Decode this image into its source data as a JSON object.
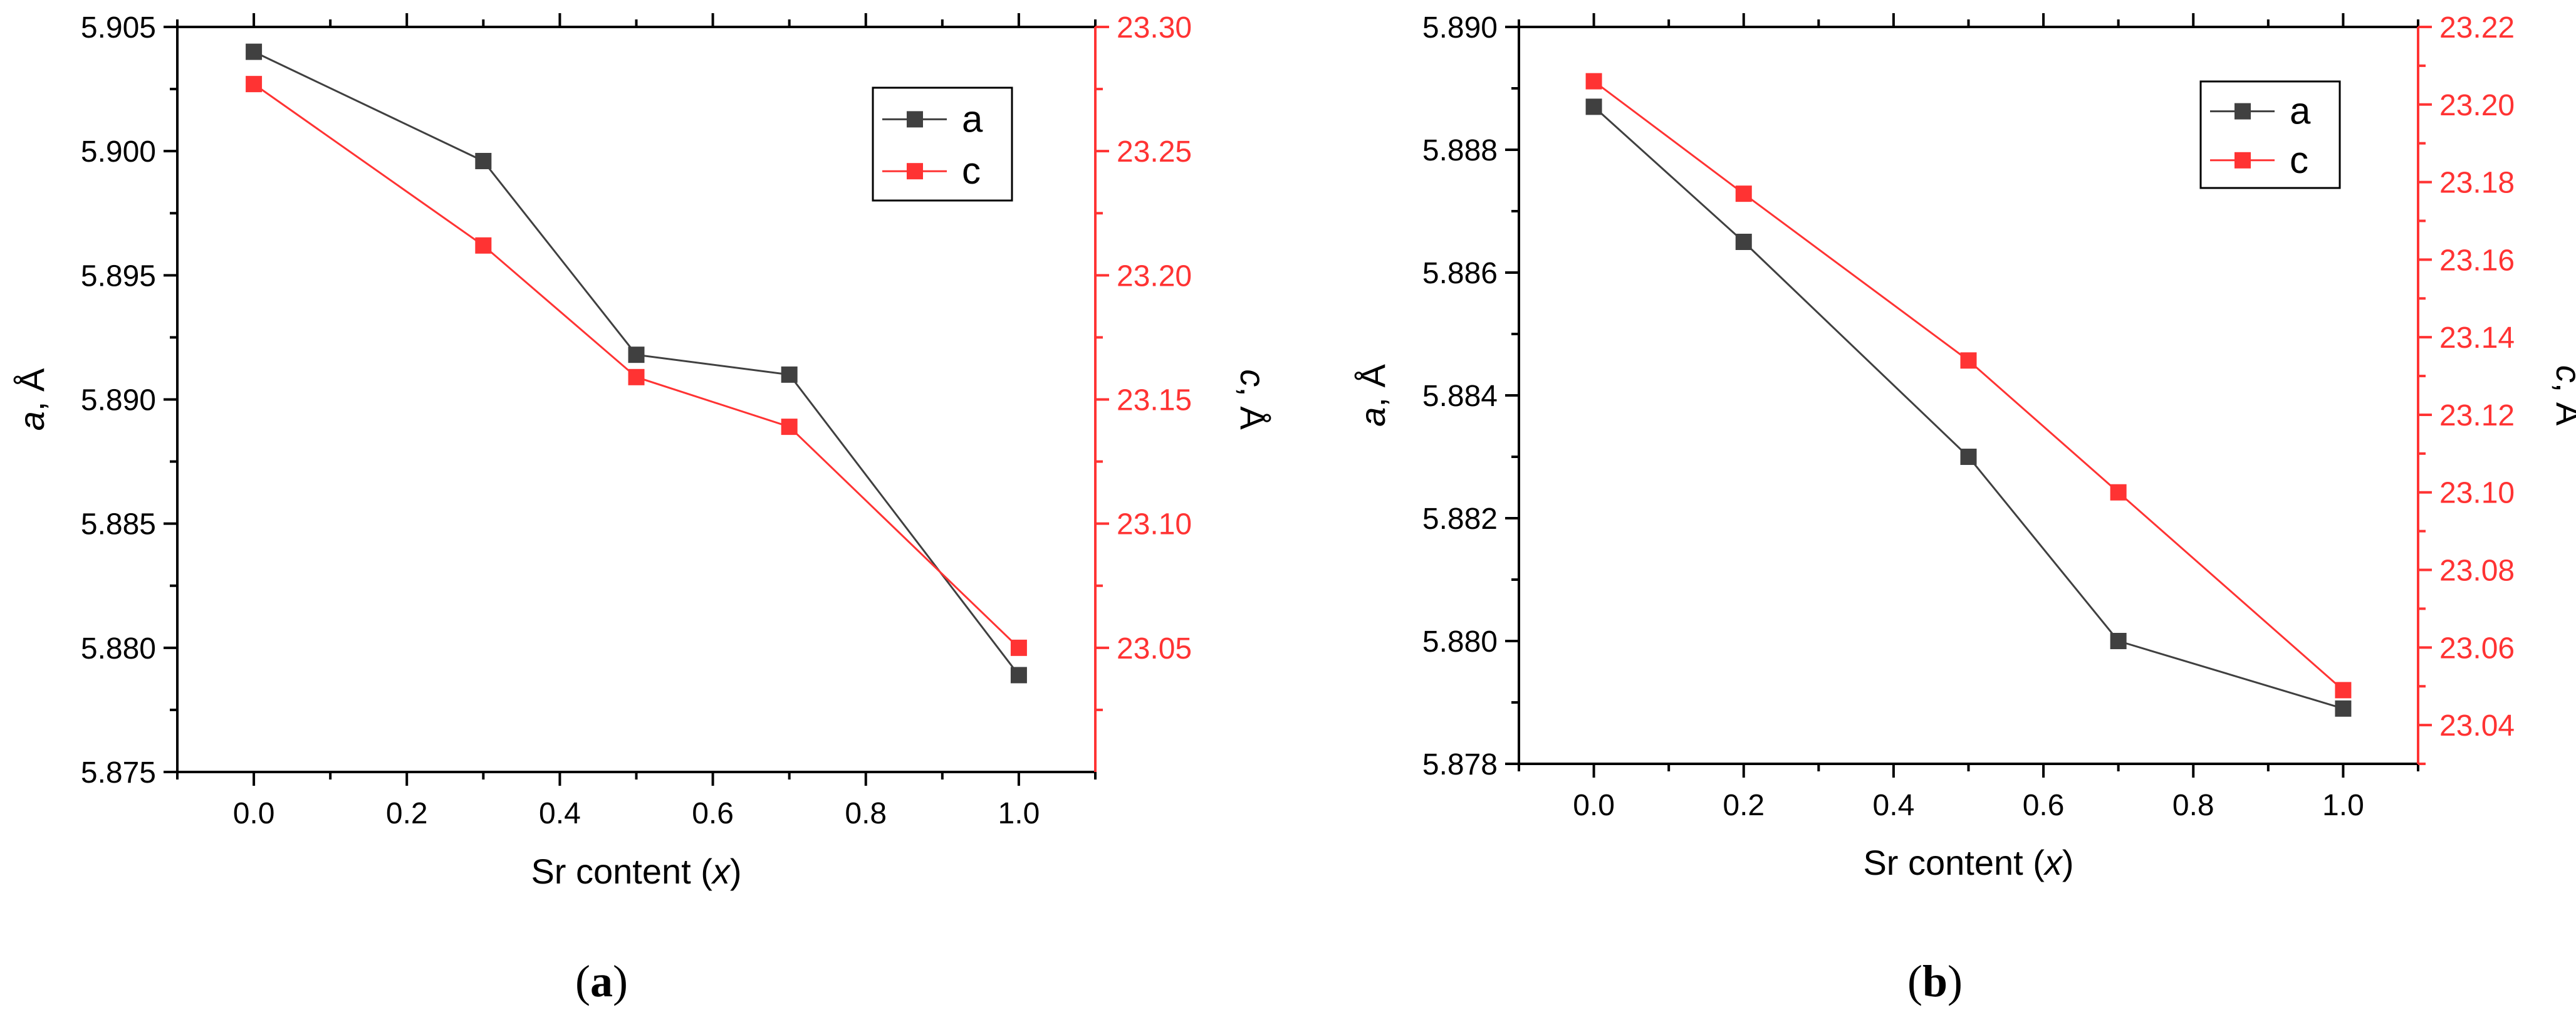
{
  "colors": {
    "a": "#404040",
    "c": "#ff3333"
  },
  "chart_data": [
    {
      "panel": "(a)",
      "type": "line",
      "xlabel": "Sr content (x)",
      "ylabel_left": "a, Å",
      "ylabel_right": "c, Å",
      "xlim": [
        -0.1,
        1.1
      ],
      "xticks": [
        "0.0",
        "0.2",
        "0.4",
        "0.6",
        "0.8",
        "1.0"
      ],
      "ylim_left": [
        5.875,
        5.905
      ],
      "yticks_left": [
        "5.875",
        "5.880",
        "5.885",
        "5.890",
        "5.895",
        "5.900",
        "5.905"
      ],
      "ylim_right": [
        23.0,
        23.3
      ],
      "yticks_right": [
        "23.05",
        "23.10",
        "23.15",
        "23.20",
        "23.25",
        "23.30"
      ],
      "legend_position": "top-right",
      "series": [
        {
          "name": "a",
          "axis": "left",
          "color": "#404040",
          "x": [
            0.0,
            0.3,
            0.5,
            0.7,
            1.0
          ],
          "y": [
            5.904,
            5.8996,
            5.8918,
            5.891,
            5.8789
          ]
        },
        {
          "name": "c",
          "axis": "right",
          "color": "#ff3333",
          "x": [
            0.0,
            0.3,
            0.5,
            0.7,
            1.0
          ],
          "y": [
            23.277,
            23.212,
            23.159,
            23.139,
            23.05
          ]
        }
      ]
    },
    {
      "panel": "(b)",
      "type": "line",
      "xlabel": "Sr content (x)",
      "ylabel_left": "a, Å",
      "ylabel_right": "c, Å",
      "xlim": [
        -0.1,
        1.1
      ],
      "xticks": [
        "0.0",
        "0.2",
        "0.4",
        "0.6",
        "0.8",
        "1.0"
      ],
      "ylim_left": [
        5.878,
        5.89
      ],
      "yticks_left": [
        "5.878",
        "5.880",
        "5.882",
        "5.884",
        "5.886",
        "5.888",
        "5.890"
      ],
      "ylim_right": [
        23.03,
        23.22
      ],
      "yticks_right": [
        "23.04",
        "23.06",
        "23.08",
        "23.10",
        "23.12",
        "23.14",
        "23.16",
        "23.18",
        "23.20",
        "23.22"
      ],
      "legend_position": "top-right",
      "series": [
        {
          "name": "a",
          "axis": "left",
          "color": "#404040",
          "x": [
            0.0,
            0.2,
            0.5,
            0.7,
            1.0
          ],
          "y": [
            5.8887,
            5.8865,
            5.883,
            5.88,
            5.8789
          ]
        },
        {
          "name": "c",
          "axis": "right",
          "color": "#ff3333",
          "x": [
            0.0,
            0.2,
            0.5,
            0.7,
            1.0
          ],
          "y": [
            23.206,
            23.177,
            23.134,
            23.1,
            23.049
          ]
        }
      ]
    }
  ]
}
